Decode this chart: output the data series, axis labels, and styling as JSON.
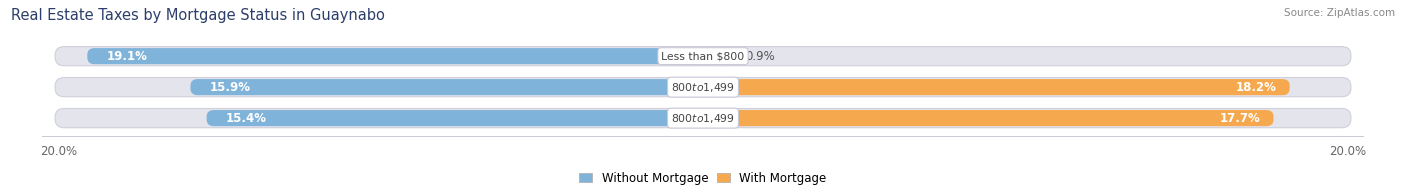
{
  "title": "Real Estate Taxes by Mortgage Status in Guaynabo",
  "source": "Source: ZipAtlas.com",
  "rows": [
    {
      "label": "Less than $800",
      "without": 19.1,
      "with": 0.9
    },
    {
      "label": "$800 to $1,499",
      "without": 15.9,
      "with": 18.2
    },
    {
      "label": "$800 to $1,499",
      "without": 15.4,
      "with": 17.7
    }
  ],
  "xlim": 20.0,
  "color_without": "#7fb3d9",
  "color_with": "#f5a84e",
  "background_color": "#ffffff",
  "bar_track_color": "#e4e4ec",
  "bar_height": 0.62,
  "legend_without": "Without Mortgage",
  "legend_with": "With Mortgage",
  "x_tick_left": "20.0%",
  "x_tick_right": "20.0%",
  "title_color": "#2c3e6b",
  "source_color": "#888888",
  "label_color": "#444444",
  "pct_color_inside": "#ffffff",
  "pct_color_outside": "#555555"
}
